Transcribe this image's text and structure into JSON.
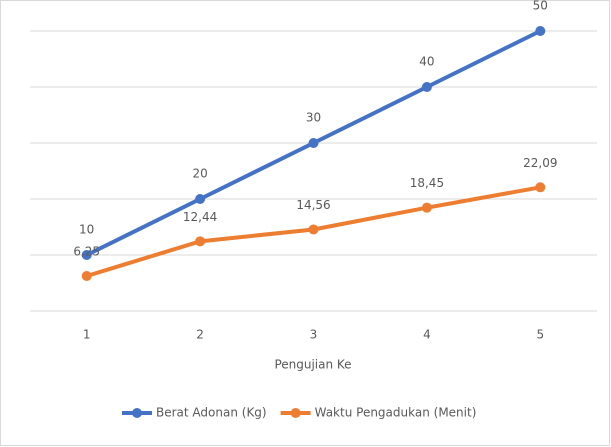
{
  "chart_data": {
    "type": "line",
    "categories": [
      "1",
      "2",
      "3",
      "4",
      "5"
    ],
    "x_label": "Pengujian Ke",
    "series": [
      {
        "name": "Berat Adonan (Kg)",
        "color": "#4472c4",
        "values": [
          10,
          20,
          30,
          40,
          50
        ]
      },
      {
        "name": "Waktu Pengadukan (Menit)",
        "color": "#ed7d31",
        "values": [
          6.25,
          12.44,
          14.56,
          18.45,
          22.09
        ],
        "value_labels": [
          "6,25",
          "12,44",
          "14,56",
          "18,45",
          "22,09"
        ]
      }
    ],
    "ylim": [
      0,
      50
    ],
    "yticks": [
      0,
      10,
      20,
      30,
      40,
      50
    ],
    "grid": true,
    "legend": "bottom"
  }
}
